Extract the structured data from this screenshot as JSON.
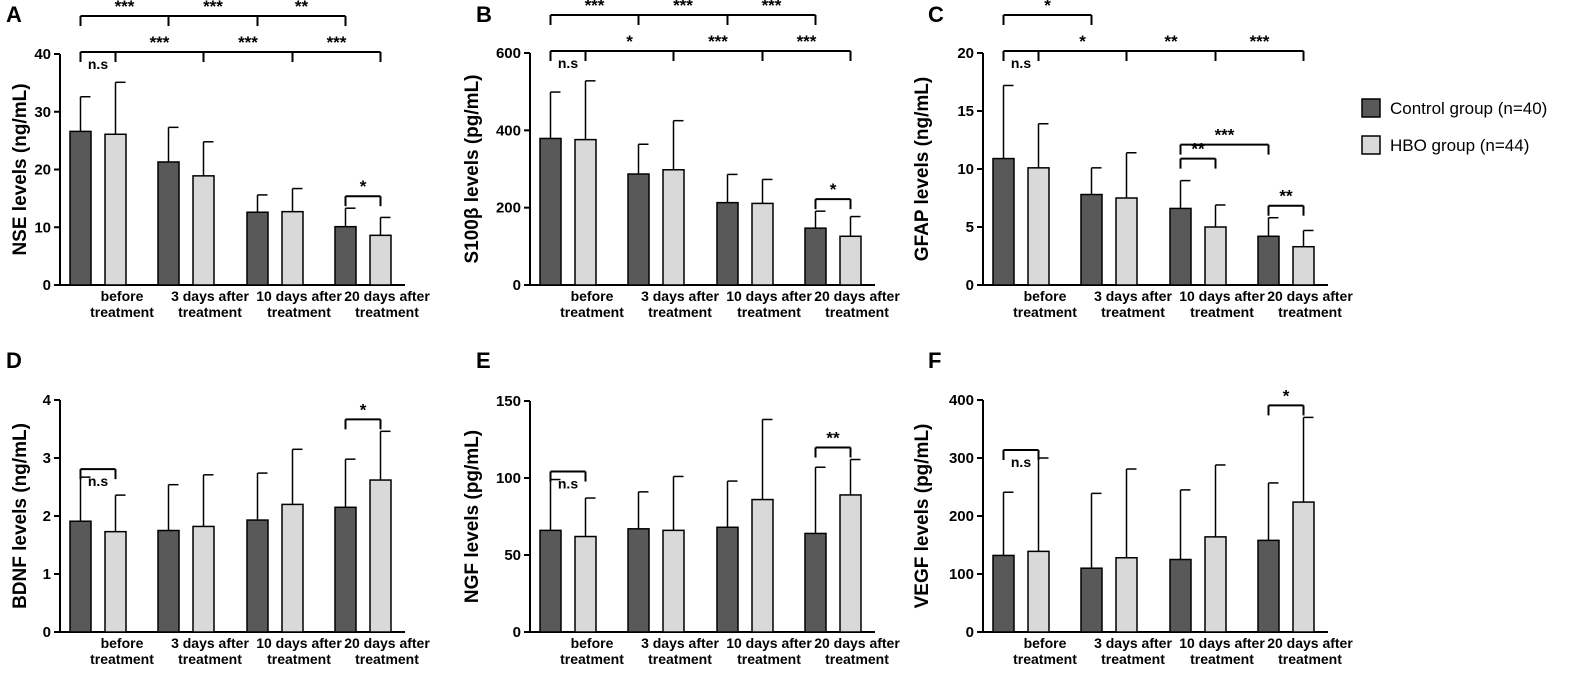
{
  "legend": {
    "items": [
      {
        "label": "Control group (n=40)",
        "color": "#595959"
      },
      {
        "label": "HBO group (n=44)",
        "color": "#d9d9d9"
      }
    ]
  },
  "chart_data": [
    {
      "panel": "A",
      "type": "bar",
      "ylabel": "NSE levels (ng/mL)",
      "ylim": [
        0,
        40
      ],
      "yticks": [
        0,
        10,
        20,
        30,
        40
      ],
      "categories": [
        [
          "before",
          "treatment"
        ],
        [
          "3 days after",
          "treatment"
        ],
        [
          "10 days after",
          "treatment"
        ],
        [
          "20 days after",
          "treatment"
        ]
      ],
      "series": [
        {
          "name": "Control group (n=40)",
          "values": [
            26.6,
            21.3,
            12.6,
            10.1
          ],
          "errors": [
            6.0,
            6.0,
            3.0,
            3.2
          ]
        },
        {
          "name": "HBO group (n=44)",
          "values": [
            26.1,
            18.9,
            12.7,
            8.6
          ],
          "errors": [
            9.0,
            5.9,
            4.0,
            3.1
          ]
        }
      ],
      "brackets": [
        {
          "level": 1,
          "ticks": [
            [
              "C",
              0
            ],
            [
              "C",
              1
            ],
            [
              "C",
              2
            ],
            [
              "C",
              3
            ]
          ],
          "labels": [
            "***",
            "***",
            "**"
          ]
        },
        {
          "level": 0,
          "ticks": [
            [
              "C",
              0
            ],
            [
              "H",
              0
            ],
            [
              "H",
              1
            ],
            [
              "H",
              2
            ],
            [
              "H",
              3
            ]
          ],
          "labels": [
            "n.s",
            "***",
            "***",
            "***"
          ]
        },
        {
          "level": -1,
          "ticks": [
            [
              "C",
              3
            ],
            [
              "H",
              3
            ]
          ],
          "labels": [
            "*"
          ]
        }
      ]
    },
    {
      "panel": "B",
      "type": "bar",
      "ylabel": "S100β levels (pg/mL)",
      "ylim": [
        0,
        600
      ],
      "yticks": [
        0,
        200,
        400,
        600
      ],
      "categories": [
        [
          "before",
          "treatment"
        ],
        [
          "3 days after",
          "treatment"
        ],
        [
          "10 days after",
          "treatment"
        ],
        [
          "20 days after",
          "treatment"
        ]
      ],
      "series": [
        {
          "name": "Control group (n=40)",
          "values": [
            379,
            287,
            213,
            147
          ],
          "errors": [
            120,
            77,
            73,
            44
          ]
        },
        {
          "name": "HBO group (n=44)",
          "values": [
            376,
            298,
            211,
            126
          ],
          "errors": [
            152,
            127,
            62,
            51
          ]
        }
      ],
      "brackets": [
        {
          "level": 1,
          "ticks": [
            [
              "C",
              0
            ],
            [
              "C",
              1
            ],
            [
              "C",
              2
            ],
            [
              "C",
              3
            ]
          ],
          "labels": [
            "***",
            "***",
            "***"
          ]
        },
        {
          "level": 0,
          "ticks": [
            [
              "C",
              0
            ],
            [
              "H",
              0
            ],
            [
              "H",
              1
            ],
            [
              "H",
              2
            ],
            [
              "H",
              3
            ]
          ],
          "labels": [
            "n.s",
            "*",
            "***",
            "***"
          ]
        },
        {
          "level": -1,
          "ticks": [
            [
              "C",
              3
            ],
            [
              "H",
              3
            ]
          ],
          "labels": [
            "*"
          ]
        }
      ]
    },
    {
      "panel": "C",
      "type": "bar",
      "ylabel": "GFAP levels (ng/mL)",
      "ylim": [
        0,
        20
      ],
      "yticks": [
        0,
        5,
        10,
        15,
        20
      ],
      "categories": [
        [
          "before",
          "treatment"
        ],
        [
          "3 days after",
          "treatment"
        ],
        [
          "10 days after",
          "treatment"
        ],
        [
          "20 days after",
          "treatment"
        ]
      ],
      "series": [
        {
          "name": "Control group (n=40)",
          "values": [
            10.9,
            7.8,
            6.6,
            4.2
          ],
          "errors": [
            6.3,
            2.3,
            2.4,
            1.6
          ]
        },
        {
          "name": "HBO group (n=44)",
          "values": [
            10.1,
            7.5,
            5.0,
            3.3
          ],
          "errors": [
            3.8,
            3.9,
            1.9,
            1.4
          ]
        }
      ],
      "brackets": [
        {
          "level": 1,
          "ticks": [
            [
              "C",
              0
            ],
            [
              "C",
              1
            ]
          ],
          "labels": [
            "*"
          ]
        },
        {
          "level": 0,
          "ticks": [
            [
              "C",
              0
            ],
            [
              "H",
              0
            ],
            [
              "H",
              1
            ],
            [
              "H",
              2
            ],
            [
              "H",
              3
            ]
          ],
          "labels": [
            "n.s",
            "*",
            "**",
            "***"
          ]
        },
        {
          "level": -1,
          "ticks": [
            [
              "C",
              2
            ],
            [
              "C",
              3
            ]
          ],
          "labels": [
            "***"
          ]
        },
        {
          "level": -2,
          "ticks": [
            [
              "C",
              2
            ],
            [
              "H",
              2
            ]
          ],
          "labels": [
            "**"
          ]
        },
        {
          "level": -3,
          "ticks": [
            [
              "C",
              3
            ],
            [
              "H",
              3
            ]
          ],
          "labels": [
            "**"
          ]
        }
      ]
    },
    {
      "panel": "D",
      "type": "bar",
      "ylabel": "BDNF levels (ng/mL)",
      "ylim": [
        0,
        4
      ],
      "yticks": [
        0,
        1,
        2,
        3,
        4
      ],
      "categories": [
        [
          "before",
          "treatment"
        ],
        [
          "3 days after",
          "treatment"
        ],
        [
          "10 days after",
          "treatment"
        ],
        [
          "20 days after",
          "treatment"
        ]
      ],
      "series": [
        {
          "name": "Control group (n=40)",
          "values": [
            1.91,
            1.75,
            1.93,
            2.15
          ],
          "errors": [
            0.76,
            0.79,
            0.81,
            0.83
          ]
        },
        {
          "name": "HBO group (n=44)",
          "values": [
            1.73,
            1.82,
            2.2,
            2.62
          ],
          "errors": [
            0.63,
            0.89,
            0.95,
            0.84
          ]
        }
      ],
      "brackets": [
        {
          "level": 0,
          "ticks": [
            [
              "C",
              0
            ],
            [
              "H",
              0
            ]
          ],
          "labels": [
            "n.s"
          ]
        },
        {
          "level": -1,
          "ticks": [
            [
              "C",
              3
            ],
            [
              "H",
              3
            ]
          ],
          "labels": [
            "*"
          ]
        }
      ]
    },
    {
      "panel": "E",
      "type": "bar",
      "ylabel": "NGF levels (pg/mL)",
      "ylim": [
        0,
        150
      ],
      "yticks": [
        0,
        50,
        100,
        150
      ],
      "categories": [
        [
          "before",
          "treatment"
        ],
        [
          "3 days after",
          "treatment"
        ],
        [
          "10 days after",
          "treatment"
        ],
        [
          "20 days after",
          "treatment"
        ]
      ],
      "series": [
        {
          "name": "Control group (n=40)",
          "values": [
            66,
            67,
            68,
            64
          ],
          "errors": [
            33,
            24,
            30,
            43
          ]
        },
        {
          "name": "HBO group (n=44)",
          "values": [
            62,
            66,
            86,
            89
          ],
          "errors": [
            25,
            35,
            52,
            23
          ]
        }
      ],
      "brackets": [
        {
          "level": 0,
          "ticks": [
            [
              "C",
              0
            ],
            [
              "H",
              0
            ]
          ],
          "labels": [
            "n.s"
          ]
        },
        {
          "level": -1,
          "ticks": [
            [
              "C",
              3
            ],
            [
              "H",
              3
            ]
          ],
          "labels": [
            "**"
          ]
        }
      ]
    },
    {
      "panel": "F",
      "type": "bar",
      "ylabel": "VEGF levels (pg/mL)",
      "ylim": [
        0,
        400
      ],
      "yticks": [
        0,
        100,
        200,
        300,
        400
      ],
      "categories": [
        [
          "before",
          "treatment"
        ],
        [
          "3 days after",
          "treatment"
        ],
        [
          "10 days after",
          "treatment"
        ],
        [
          "20 days after",
          "treatment"
        ]
      ],
      "series": [
        {
          "name": "Control group (n=40)",
          "values": [
            132,
            110,
            125,
            158
          ],
          "errors": [
            109,
            129,
            120,
            99
          ]
        },
        {
          "name": "HBO group (n=44)",
          "values": [
            139,
            128,
            164,
            224
          ],
          "errors": [
            161,
            153,
            124,
            146
          ]
        }
      ],
      "brackets": [
        {
          "level": 0,
          "ticks": [
            [
              "C",
              0
            ],
            [
              "H",
              0
            ]
          ],
          "labels": [
            "n.s"
          ]
        },
        {
          "level": -1,
          "ticks": [
            [
              "C",
              3
            ],
            [
              "H",
              3
            ]
          ],
          "labels": [
            "*"
          ]
        }
      ]
    }
  ]
}
